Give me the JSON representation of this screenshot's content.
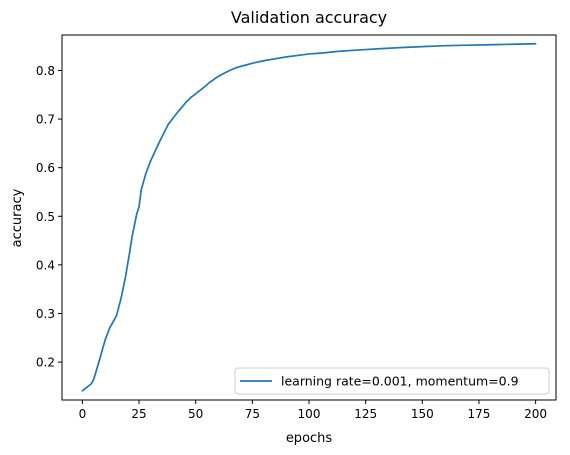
{
  "chart_data": {
    "type": "line",
    "title": "Validation accuracy",
    "xlabel": "epochs",
    "ylabel": "accuracy",
    "xlim": [
      -9,
      209
    ],
    "ylim": [
      0.122,
      0.873
    ],
    "xticks": [
      0,
      25,
      50,
      75,
      100,
      125,
      150,
      175,
      200
    ],
    "yticks": [
      0.2,
      0.3,
      0.4,
      0.5,
      0.6,
      0.7,
      0.8
    ],
    "xtick_labels": [
      "0",
      "25",
      "50",
      "75",
      "100",
      "125",
      "150",
      "175",
      "200"
    ],
    "ytick_labels": [
      "0.2",
      "0.3",
      "0.4",
      "0.5",
      "0.6",
      "0.7",
      "0.8"
    ],
    "grid": false,
    "legend_position": "lower-right",
    "series": [
      {
        "name": "learning rate=0.001, momentum=0.9",
        "color": "#1f77b4",
        "x": [
          0,
          2,
          4,
          5,
          6,
          8,
          10,
          12,
          15,
          17,
          19,
          21,
          22,
          24,
          25,
          26,
          28,
          30,
          32,
          34,
          36,
          38,
          40,
          42,
          44,
          46,
          48,
          50,
          53,
          56,
          59,
          62,
          65,
          68,
          72,
          76,
          80,
          85,
          90,
          95,
          100,
          106,
          112,
          118,
          125,
          132,
          140,
          150,
          160,
          170,
          180,
          190,
          200
        ],
        "y": [
          0.141,
          0.148,
          0.156,
          0.165,
          0.18,
          0.212,
          0.245,
          0.27,
          0.295,
          0.33,
          0.375,
          0.43,
          0.46,
          0.505,
          0.52,
          0.555,
          0.588,
          0.613,
          0.633,
          0.653,
          0.672,
          0.69,
          0.702,
          0.714,
          0.725,
          0.736,
          0.745,
          0.752,
          0.763,
          0.775,
          0.785,
          0.793,
          0.8,
          0.806,
          0.811,
          0.816,
          0.82,
          0.824,
          0.828,
          0.831,
          0.834,
          0.836,
          0.839,
          0.841,
          0.843,
          0.845,
          0.847,
          0.849,
          0.851,
          0.852,
          0.853,
          0.854,
          0.855
        ]
      }
    ]
  }
}
